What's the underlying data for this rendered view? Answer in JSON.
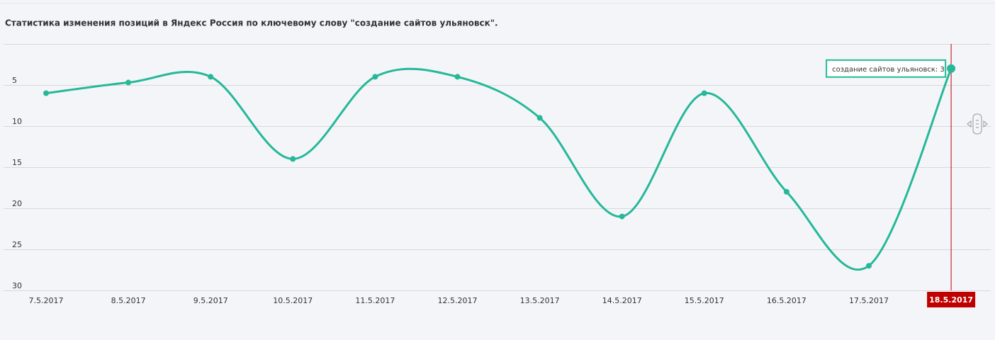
{
  "chart_data": {
    "type": "line",
    "title": "Статистика изменения позиций в Яндекс Россия по ключевому слову \"создание сайтов ульяновск\".",
    "categories": [
      "7.5.2017",
      "8.5.2017",
      "9.5.2017",
      "10.5.2017",
      "11.5.2017",
      "12.5.2017",
      "13.5.2017",
      "14.5.2017",
      "15.5.2017",
      "16.5.2017",
      "17.5.2017",
      "18.5.2017"
    ],
    "series": [
      {
        "name": "создание сайтов ульяновск",
        "color": "#26b899",
        "values": [
          6,
          4.7,
          4,
          14,
          4,
          4,
          9,
          21,
          6,
          18,
          27,
          3
        ]
      }
    ],
    "ylim": [
      0,
      30
    ],
    "yticks": [
      5,
      10,
      15,
      20,
      25,
      30
    ],
    "y_reversed": true,
    "grid": true,
    "highlight_color": "#c00000"
  }
}
